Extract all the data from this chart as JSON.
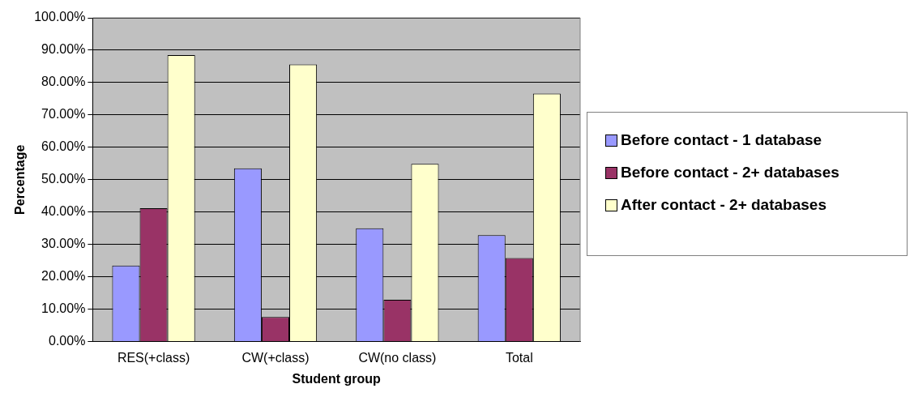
{
  "chart_data": {
    "type": "bar",
    "xlabel": "Student group",
    "ylabel": "Percentage",
    "categories": [
      "RES(+class)",
      "CW(+class)",
      "CW(no class)",
      "Total"
    ],
    "series": [
      {
        "name": "Before contact - 1 database",
        "color": "#9999ff",
        "values": [
          23.5,
          53.5,
          35.0,
          32.9
        ]
      },
      {
        "name": "Before contact - 2+ databases",
        "color": "#993366",
        "values": [
          41.2,
          7.6,
          12.9,
          25.8
        ]
      },
      {
        "name": "After contact - 2+ databases",
        "color": "#ffffcc",
        "values": [
          88.5,
          85.6,
          54.9,
          76.6
        ]
      }
    ],
    "ylim": [
      0,
      100
    ],
    "yticks": [
      {
        "value": 0,
        "label": "0.00%"
      },
      {
        "value": 10,
        "label": "10.00%"
      },
      {
        "value": 20,
        "label": "20.00%"
      },
      {
        "value": 30,
        "label": "30.00%"
      },
      {
        "value": 40,
        "label": "40.00%"
      },
      {
        "value": 50,
        "label": "50.00%"
      },
      {
        "value": 60,
        "label": "60.00%"
      },
      {
        "value": 70,
        "label": "70.00%"
      },
      {
        "value": 80,
        "label": "80.00%"
      },
      {
        "value": 90,
        "label": "90.00%"
      },
      {
        "value": 100,
        "label": "100.00%"
      }
    ],
    "grid": "y",
    "legend": "right"
  }
}
